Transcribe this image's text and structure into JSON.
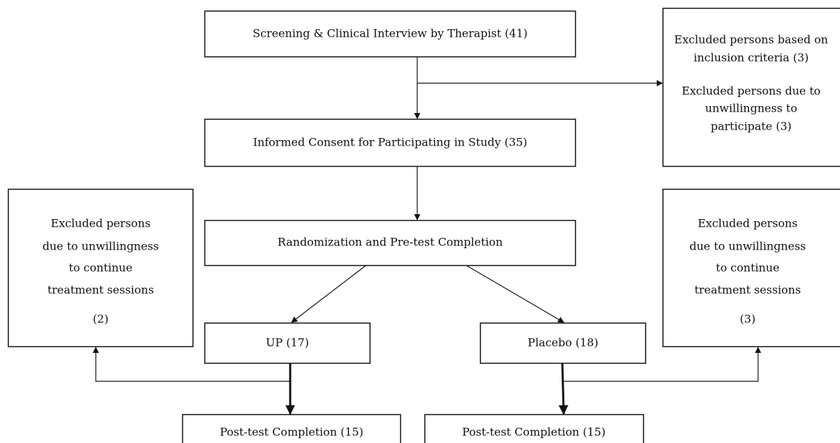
{
  "nodes": [
    {
      "lines": [
        "Screening & Clinical Interview by Therapist (41)"
      ]
    },
    {
      "lines": [
        "Excluded persons based on",
        "inclusion criteria (3)"
      ]
    },
    {
      "lines": [
        "Excluded persons due to",
        "unwillingness to",
        "participate (3)"
      ]
    },
    {
      "lines": [
        "Informed Consent for Participating in Study (35)"
      ]
    },
    {
      "lines": [
        "Randomization and Pre-test Completion"
      ]
    },
    {
      "lines": [
        "Excluded persons",
        "due to unwillingness",
        "to continue",
        "treatment sessions",
        "(2)"
      ]
    },
    {
      "lines": [
        "Excluded persons",
        "due to unwillingness",
        "to continue",
        "treatment sessions",
        "(3)"
      ]
    },
    {
      "lines": [
        "UP (17)"
      ]
    },
    {
      "lines": [
        "Placebo (18)"
      ]
    },
    {
      "lines": [
        "Post-test Completion (15)"
      ]
    },
    {
      "lines": [
        "Post-test Completion (15)"
      ]
    }
  ]
}
